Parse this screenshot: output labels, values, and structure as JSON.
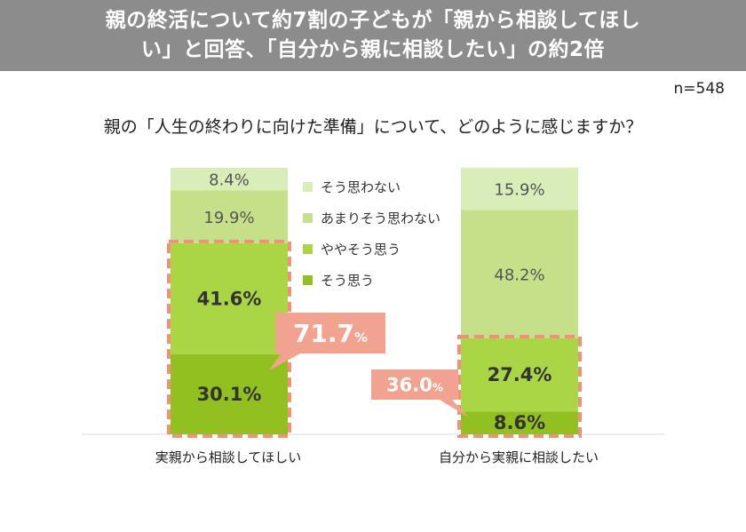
{
  "banner": {
    "line1": "親の終活について約7割の子どもが「親から相談してほし",
    "line2": "い」と回答、「自分から親に相談したい」の約2倍"
  },
  "sample_size": "n=548",
  "question": "親の「人生の終わりに向けた準備」について、どのように感じますか？",
  "colors": {
    "banner": "#8c8c8c",
    "s0": "#d9edb9",
    "s1": "#c6e08a",
    "s2": "#aad545",
    "s3": "#92c020",
    "highlight": "#f2917a",
    "callout": "#f2a38f"
  },
  "chart_data": {
    "type": "bar",
    "stacked": true,
    "orientation": "vertical",
    "ylim": [
      0,
      100
    ],
    "categories": [
      "実親から相談してほしい",
      "自分から実親に相談したい"
    ],
    "series": [
      {
        "name": "そう思う",
        "values": [
          30.1,
          8.6
        ],
        "labels": [
          "30.1%",
          "8.6%"
        ]
      },
      {
        "name": "ややそう思う",
        "values": [
          41.6,
          27.4
        ],
        "labels": [
          "41.6%",
          "27.4%"
        ]
      },
      {
        "name": "あまりそう思わない",
        "values": [
          19.9,
          48.2
        ],
        "labels": [
          "19.9%",
          "48.2%"
        ]
      },
      {
        "name": "そう思わない",
        "values": [
          8.4,
          15.9
        ],
        "labels": [
          "8.4%",
          "15.9%"
        ]
      }
    ],
    "legend_position": "center",
    "callouts": [
      {
        "category_index": 0,
        "value": "71.7",
        "unit": "%"
      },
      {
        "category_index": 1,
        "value": "36.0",
        "unit": "%"
      }
    ]
  }
}
